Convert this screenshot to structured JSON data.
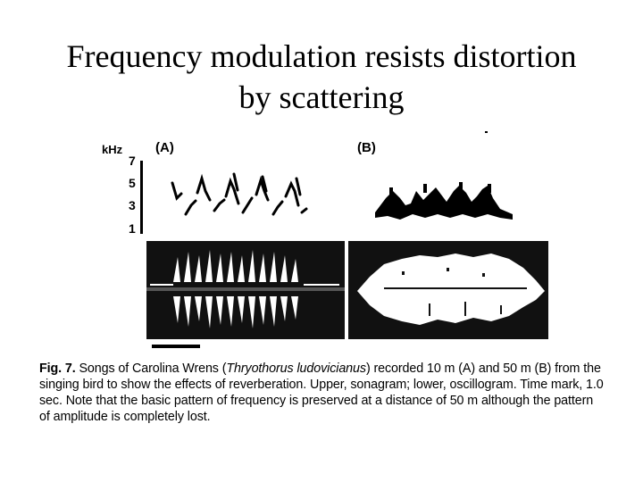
{
  "slide": {
    "title_line1": "Frequency modulation resists distortion",
    "title_line2": "by scattering"
  },
  "figure": {
    "unit_label": "kHz",
    "panel_a_label": "(A)",
    "panel_b_label": "(B)",
    "y_ticks": [
      "7",
      "5",
      "3",
      "1"
    ]
  },
  "caption": {
    "fig_label": "Fig. 7.",
    "text_1": " Songs of Carolina Wrens (",
    "species": "Thryothorus ludovicianus",
    "text_2": ") recorded 10 m (A) and 50 m (B) from the singing bird to show the effects of reverberation. Upper, sonagram; lower, oscillogram. Time mark, 1.0 sec. Note that the basic pattern of frequency is preserved at a distance of 50 m although the pattern of amplitude is completely lost."
  }
}
